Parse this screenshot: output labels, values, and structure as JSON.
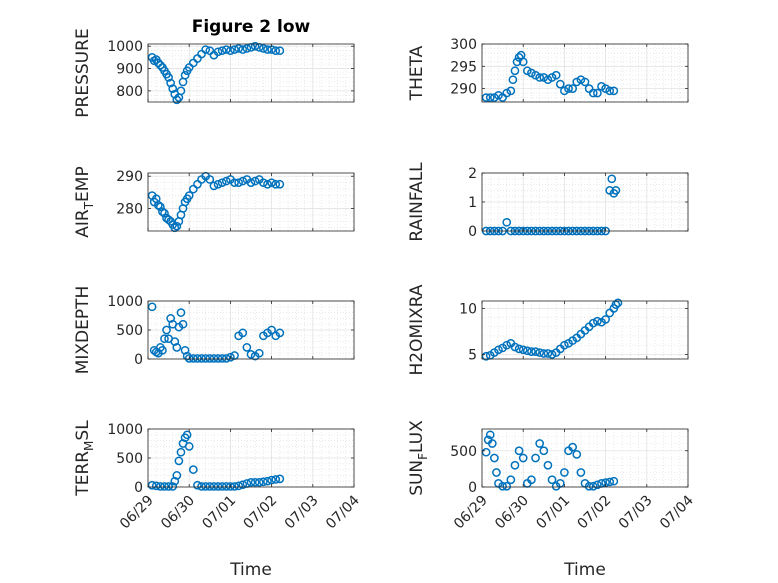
{
  "figure_title": "Figure 2 low",
  "xlabel": "Time",
  "marker_color": "#0072BD",
  "x_ticks": [
    "06/29",
    "06/30",
    "07/01",
    "07/02",
    "07/03",
    "07/04"
  ],
  "chart_data": [
    {
      "type": "scatter",
      "title": "Figure 2 low",
      "ylabel": "PRESSURE",
      "ylabel_sub": null,
      "ylim": [
        750,
        1010
      ],
      "yticks": [
        800,
        900,
        1000
      ],
      "x": [
        0.1,
        0.15,
        0.2,
        0.25,
        0.3,
        0.35,
        0.4,
        0.45,
        0.5,
        0.55,
        0.6,
        0.65,
        0.7,
        0.75,
        0.8,
        0.85,
        0.9,
        0.95,
        1.0,
        1.1,
        1.2,
        1.3,
        1.4,
        1.5,
        1.6,
        1.7,
        1.8,
        1.9,
        2.0,
        2.1,
        2.2,
        2.3,
        2.4,
        2.5,
        2.6,
        2.7,
        2.8,
        2.9,
        3.0,
        3.1,
        3.2
      ],
      "y": [
        950,
        935,
        940,
        925,
        915,
        905,
        890,
        875,
        860,
        835,
        810,
        785,
        760,
        770,
        800,
        840,
        870,
        890,
        905,
        925,
        945,
        965,
        985,
        980,
        960,
        975,
        980,
        985,
        980,
        985,
        990,
        985,
        990,
        995,
        1000,
        995,
        990,
        985,
        985,
        980,
        980
      ]
    },
    {
      "type": "scatter",
      "title": "",
      "ylabel": "THETA",
      "ylabel_sub": null,
      "ylim": [
        287,
        300
      ],
      "yticks": [
        290,
        295,
        300
      ],
      "x": [
        0.1,
        0.2,
        0.3,
        0.4,
        0.5,
        0.6,
        0.7,
        0.75,
        0.8,
        0.85,
        0.9,
        0.95,
        1.0,
        1.1,
        1.2,
        1.3,
        1.4,
        1.5,
        1.6,
        1.7,
        1.8,
        1.9,
        2.0,
        2.1,
        2.2,
        2.3,
        2.4,
        2.5,
        2.6,
        2.7,
        2.8,
        2.9,
        3.0,
        3.1,
        3.2
      ],
      "y": [
        288,
        288,
        288,
        288.5,
        288,
        289,
        289.5,
        292,
        294,
        296,
        297,
        297.5,
        296,
        294,
        293.5,
        293,
        292.5,
        292.5,
        292,
        292.5,
        293,
        291,
        289.5,
        290,
        290,
        291.5,
        292,
        291.5,
        290,
        289,
        289,
        290.5,
        290,
        289.5,
        289.5
      ]
    },
    {
      "type": "scatter",
      "title": "",
      "ylabel": "AIR",
      "ylabel_sub": "T",
      "ylabel_tail": "EMP",
      "ylim": [
        273,
        291
      ],
      "yticks": [
        280,
        290
      ],
      "x": [
        0.1,
        0.15,
        0.2,
        0.25,
        0.3,
        0.35,
        0.4,
        0.45,
        0.5,
        0.55,
        0.6,
        0.65,
        0.7,
        0.75,
        0.8,
        0.85,
        0.9,
        0.95,
        1.0,
        1.1,
        1.2,
        1.3,
        1.4,
        1.5,
        1.6,
        1.7,
        1.8,
        1.9,
        2.0,
        2.1,
        2.2,
        2.3,
        2.4,
        2.5,
        2.6,
        2.7,
        2.8,
        2.9,
        3.0,
        3.1,
        3.2
      ],
      "y": [
        284,
        282,
        283,
        281,
        280.5,
        279,
        278.5,
        277,
        276.5,
        276,
        275,
        274,
        274.5,
        276,
        278,
        280,
        282,
        283,
        284,
        286,
        287.5,
        289,
        290,
        289,
        287,
        287.5,
        288,
        288.5,
        289,
        288,
        288,
        288.5,
        289,
        288,
        288.5,
        289,
        288,
        287.5,
        288,
        287.5,
        287.5
      ]
    },
    {
      "type": "scatter",
      "title": "",
      "ylabel": "RAINFALL",
      "ylabel_sub": null,
      "ylim": [
        0,
        2
      ],
      "yticks": [
        0,
        1,
        2
      ],
      "x": [
        0.1,
        0.2,
        0.3,
        0.4,
        0.5,
        0.6,
        0.7,
        0.8,
        0.9,
        1.0,
        1.1,
        1.2,
        1.3,
        1.4,
        1.5,
        1.6,
        1.7,
        1.8,
        1.9,
        2.0,
        2.1,
        2.2,
        2.3,
        2.4,
        2.5,
        2.6,
        2.7,
        2.8,
        2.9,
        3.0,
        3.1,
        3.15,
        3.2,
        3.25
      ],
      "y": [
        0,
        0,
        0,
        0,
        0,
        0.3,
        0,
        0,
        0,
        0,
        0,
        0,
        0,
        0,
        0,
        0,
        0,
        0,
        0,
        0,
        0,
        0,
        0,
        0,
        0,
        0,
        0,
        0,
        0,
        0,
        1.4,
        1.8,
        1.3,
        1.4
      ]
    },
    {
      "type": "scatter",
      "title": "",
      "ylabel": "MIXDEPTH",
      "ylabel_sub": null,
      "ylim": [
        0,
        1000
      ],
      "yticks": [
        0,
        500,
        1000
      ],
      "x": [
        0.1,
        0.15,
        0.2,
        0.25,
        0.3,
        0.35,
        0.4,
        0.45,
        0.5,
        0.55,
        0.6,
        0.65,
        0.7,
        0.75,
        0.8,
        0.85,
        0.9,
        0.95,
        1.0,
        1.1,
        1.2,
        1.3,
        1.4,
        1.5,
        1.6,
        1.7,
        1.8,
        1.9,
        2.0,
        2.1,
        2.2,
        2.3,
        2.4,
        2.5,
        2.6,
        2.7,
        2.8,
        2.9,
        3.0,
        3.1,
        3.2
      ],
      "y": [
        900,
        150,
        120,
        100,
        200,
        150,
        350,
        500,
        350,
        700,
        600,
        300,
        200,
        550,
        800,
        600,
        150,
        50,
        10,
        10,
        10,
        10,
        10,
        10,
        10,
        10,
        10,
        10,
        30,
        60,
        400,
        450,
        200,
        80,
        50,
        100,
        400,
        450,
        500,
        400,
        450
      ]
    },
    {
      "type": "scatter",
      "title": "",
      "ylabel": "H2OMIXRA",
      "ylabel_sub": null,
      "ylim": [
        4.5,
        10.8
      ],
      "yticks": [
        5,
        10
      ],
      "x": [
        0.1,
        0.2,
        0.3,
        0.4,
        0.5,
        0.6,
        0.7,
        0.8,
        0.9,
        1.0,
        1.1,
        1.2,
        1.3,
        1.4,
        1.5,
        1.6,
        1.7,
        1.8,
        1.9,
        2.0,
        2.1,
        2.2,
        2.3,
        2.4,
        2.5,
        2.6,
        2.7,
        2.8,
        2.9,
        3.0,
        3.1,
        3.2,
        3.25,
        3.3
      ],
      "y": [
        4.8,
        4.9,
        5.2,
        5.5,
        5.7,
        6.0,
        6.2,
        5.8,
        5.6,
        5.5,
        5.4,
        5.3,
        5.3,
        5.2,
        5.1,
        5.1,
        5.0,
        5.2,
        5.6,
        6.0,
        6.2,
        6.5,
        6.8,
        7.2,
        7.6,
        8.0,
        8.4,
        8.6,
        8.5,
        8.8,
        9.5,
        10.0,
        10.4,
        10.6
      ]
    },
    {
      "type": "scatter",
      "title": "",
      "ylabel": "TERR",
      "ylabel_sub": "M",
      "ylabel_tail": "SL",
      "ylim": [
        0,
        1000
      ],
      "yticks": [
        0,
        500,
        1000
      ],
      "x": [
        0.1,
        0.2,
        0.3,
        0.4,
        0.5,
        0.6,
        0.65,
        0.7,
        0.75,
        0.8,
        0.85,
        0.9,
        0.95,
        1.0,
        1.1,
        1.2,
        1.3,
        1.4,
        1.5,
        1.6,
        1.7,
        1.8,
        1.9,
        2.0,
        2.1,
        2.2,
        2.3,
        2.4,
        2.5,
        2.6,
        2.7,
        2.8,
        2.9,
        3.0,
        3.1,
        3.2
      ],
      "y": [
        30,
        20,
        10,
        10,
        10,
        10,
        100,
        200,
        450,
        600,
        750,
        850,
        900,
        700,
        300,
        30,
        10,
        10,
        10,
        10,
        10,
        10,
        10,
        10,
        10,
        20,
        40,
        60,
        80,
        80,
        80,
        90,
        100,
        120,
        130,
        140
      ]
    },
    {
      "type": "scatter",
      "title": "",
      "ylabel": "SUN",
      "ylabel_sub": "F",
      "ylabel_tail": "LUX",
      "ylim": [
        0,
        800
      ],
      "yticks": [
        0,
        500
      ],
      "x": [
        0.1,
        0.15,
        0.2,
        0.25,
        0.3,
        0.35,
        0.4,
        0.5,
        0.6,
        0.7,
        0.8,
        0.9,
        1.0,
        1.1,
        1.2,
        1.3,
        1.4,
        1.5,
        1.6,
        1.7,
        1.8,
        1.9,
        2.0,
        2.1,
        2.2,
        2.3,
        2.4,
        2.5,
        2.6,
        2.7,
        2.8,
        2.9,
        3.0,
        3.1,
        3.2
      ],
      "y": [
        480,
        650,
        720,
        600,
        400,
        200,
        50,
        10,
        10,
        100,
        300,
        500,
        400,
        50,
        100,
        400,
        600,
        500,
        300,
        100,
        10,
        50,
        200,
        500,
        550,
        450,
        200,
        50,
        10,
        10,
        30,
        50,
        60,
        70,
        80
      ]
    }
  ]
}
